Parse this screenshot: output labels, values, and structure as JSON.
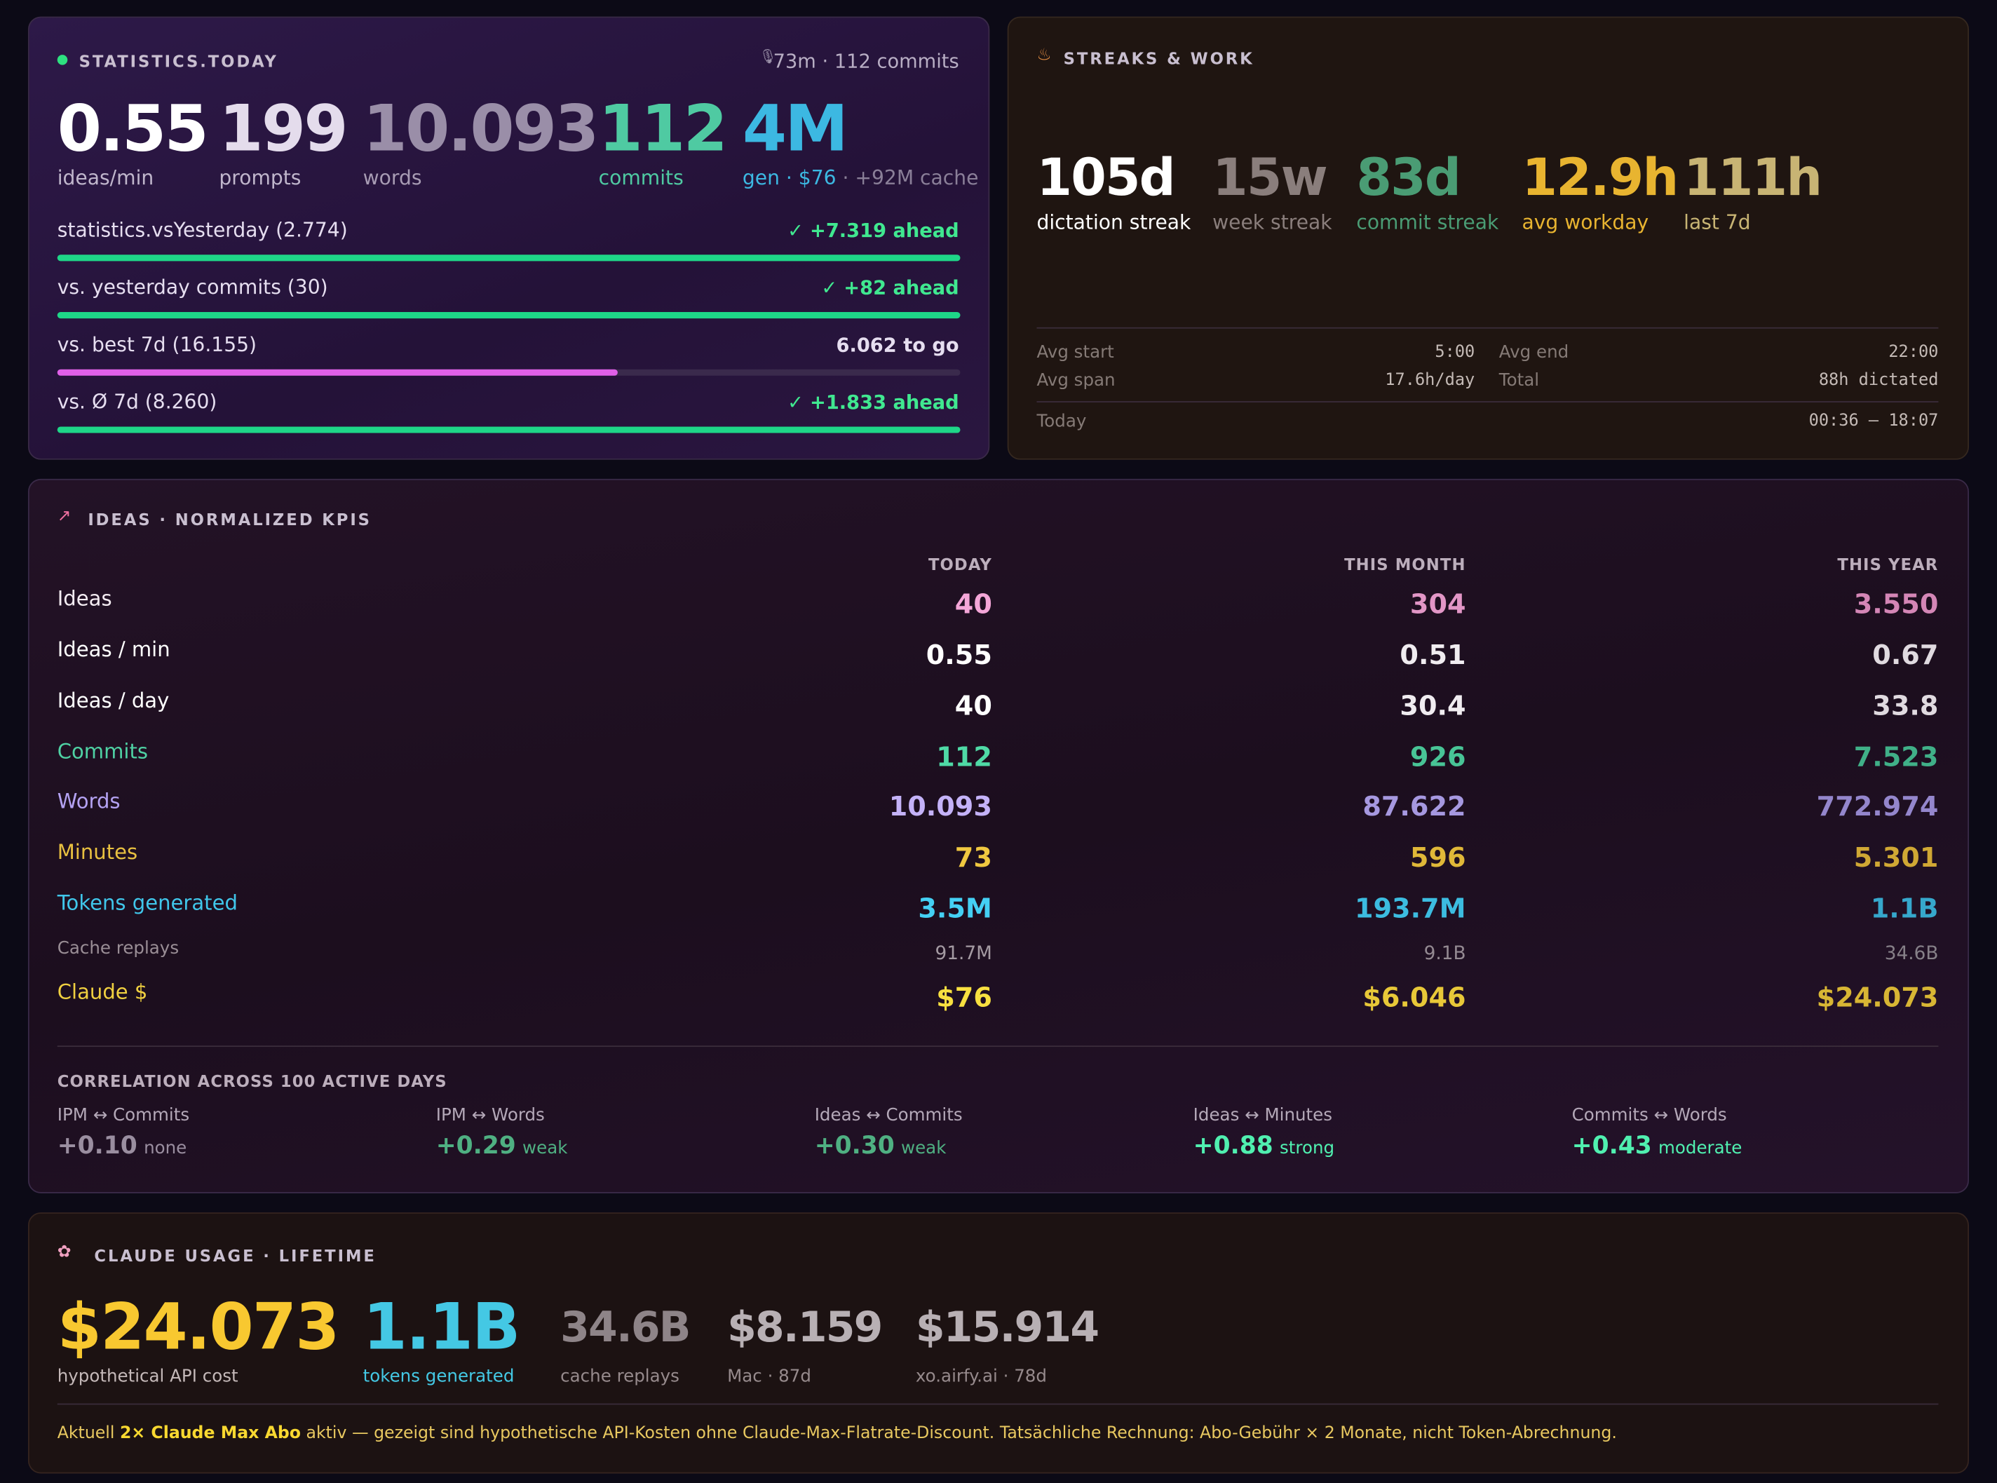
{
  "stats_today": {
    "title": "STATISTICS.TODAY",
    "meta": "73m · 112 commits",
    "kpis": [
      {
        "value": "0.55",
        "label": "ideas/min"
      },
      {
        "value": "199",
        "label": "prompts"
      },
      {
        "value": "10.093",
        "label": "words"
      },
      {
        "value": "112",
        "label": "commits"
      },
      {
        "value": "4M",
        "label": "gen · $76",
        "extra": "· +92M cache"
      }
    ],
    "comparisons": [
      {
        "label": "statistics.vsYesterday (2.774)",
        "status": "+7.319 ahead"
      },
      {
        "label": "vs. yesterday commits (30)",
        "status": "+82 ahead"
      },
      {
        "label": "vs. best 7d (16.155)",
        "status": "6.062 to go"
      },
      {
        "label": "vs. Ø 7d (8.260)",
        "status": "+1.833 ahead"
      }
    ]
  },
  "streaks": {
    "title": "STREAKS & WORK",
    "kpis": [
      {
        "value": "105d",
        "label": "dictation streak"
      },
      {
        "value": "15w",
        "label": "week streak"
      },
      {
        "value": "83d",
        "label": "commit streak"
      },
      {
        "value": "12.9h",
        "label": "avg workday"
      },
      {
        "value": "111h",
        "label": "last 7d"
      }
    ],
    "details": [
      {
        "label": "Avg start",
        "value": "5:00"
      },
      {
        "label": "Avg end",
        "value": "22:00"
      },
      {
        "label": "Avg span",
        "value": "17.6h/day"
      },
      {
        "label": "Total",
        "value": "88h dictated"
      },
      {
        "label": "Today",
        "value": "00:36 – 18:07"
      }
    ]
  },
  "ideas": {
    "title": "IDEAS · NORMALIZED KPIS",
    "columns": [
      "TODAY",
      "THIS MONTH",
      "THIS YEAR"
    ],
    "rows": [
      {
        "label": "Ideas",
        "values": [
          "40",
          "304",
          "3.550"
        ]
      },
      {
        "label": "Ideas / min",
        "values": [
          "0.55",
          "0.51",
          "0.67"
        ]
      },
      {
        "label": "Ideas / day",
        "values": [
          "40",
          "30.4",
          "33.8"
        ]
      },
      {
        "label": "Commits",
        "values": [
          "112",
          "926",
          "7.523"
        ]
      },
      {
        "label": "Words",
        "values": [
          "10.093",
          "87.622",
          "772.974"
        ]
      },
      {
        "label": "Minutes",
        "values": [
          "73",
          "596",
          "5.301"
        ]
      },
      {
        "label": "Tokens generated",
        "values": [
          "3.5M",
          "193.7M",
          "1.1B"
        ]
      },
      {
        "label": "Cache replays",
        "values": [
          "91.7M",
          "9.1B",
          "34.6B"
        ]
      },
      {
        "label": "Claude $",
        "values": [
          "$76",
          "$6.046",
          "$24.073"
        ]
      }
    ],
    "correlation": {
      "title": "CORRELATION ACROSS 100 ACTIVE DAYS",
      "items": [
        {
          "label": "IPM ↔ Commits",
          "value": "+0.10",
          "strength": "none"
        },
        {
          "label": "IPM ↔ Words",
          "value": "+0.29",
          "strength": "weak"
        },
        {
          "label": "Ideas ↔ Commits",
          "value": "+0.30",
          "strength": "weak"
        },
        {
          "label": "Ideas ↔ Minutes",
          "value": "+0.88",
          "strength": "strong"
        },
        {
          "label": "Commits ↔ Words",
          "value": "+0.43",
          "strength": "moderate"
        }
      ]
    }
  },
  "claude": {
    "title": "CLAUDE USAGE · LIFETIME",
    "kpis": [
      {
        "value": "$24.073",
        "label": "hypothetical API cost"
      },
      {
        "value": "1.1B",
        "label": "tokens generated"
      },
      {
        "value": "34.6B",
        "label": "cache replays"
      },
      {
        "value": "$8.159",
        "label": "Mac · 87d"
      },
      {
        "value": "$15.914",
        "label": "xo.airfy.ai · 78d"
      }
    ],
    "note": [
      "Aktuell",
      "2× Claude Max Abo",
      "aktiv — gezeigt sind hypothetische API-Kosten ohne Claude-Max-Flatrate-Discount. Tatsächliche Rechnung: Abo-Gebühr × 2 Monate, nicht Token-Abrechnung."
    ]
  }
}
